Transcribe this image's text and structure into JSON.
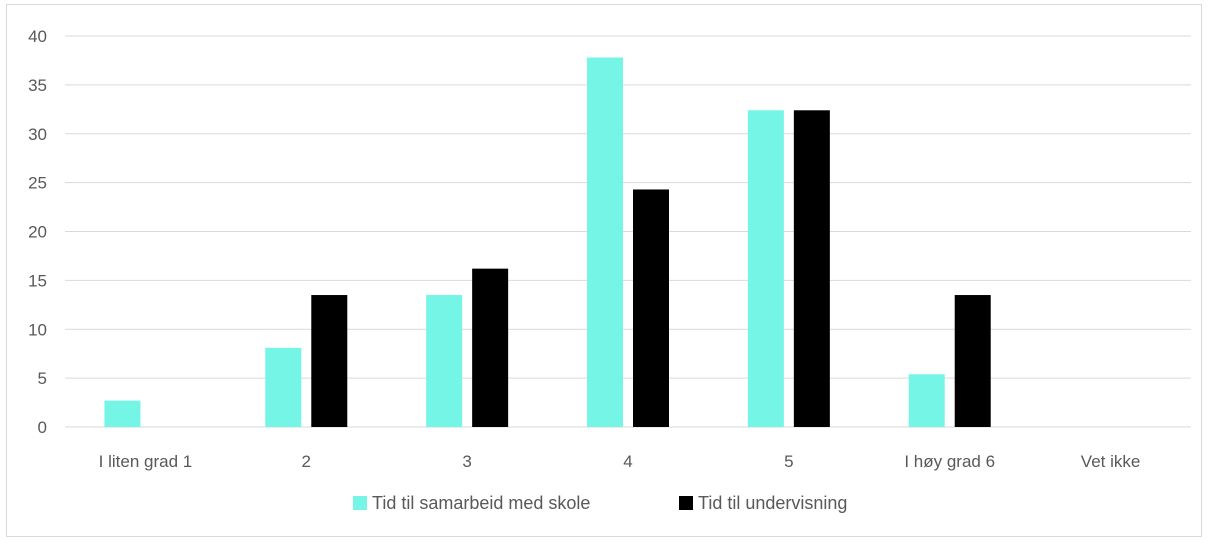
{
  "chart_data": {
    "type": "bar",
    "categories": [
      "I liten grad 1",
      "2",
      "3",
      "4",
      "5",
      "I høy grad 6",
      "Vet ikke"
    ],
    "series": [
      {
        "name": "Tid til samarbeid med skole",
        "color": "#74f5e6",
        "values": [
          2.7,
          8.1,
          13.5,
          37.8,
          32.4,
          5.4,
          0
        ]
      },
      {
        "name": "Tid til undervisning",
        "color": "#000000",
        "values": [
          0,
          13.5,
          16.2,
          24.3,
          32.4,
          13.5,
          0
        ]
      }
    ],
    "ylim": [
      0,
      40
    ],
    "yticks": [
      "0",
      "5",
      "10",
      "15",
      "20",
      "25",
      "30",
      "35",
      "40"
    ],
    "grid": true,
    "legend_position": "bottom",
    "gridline_color": "#d9d9d9",
    "text_color": "#595959"
  }
}
